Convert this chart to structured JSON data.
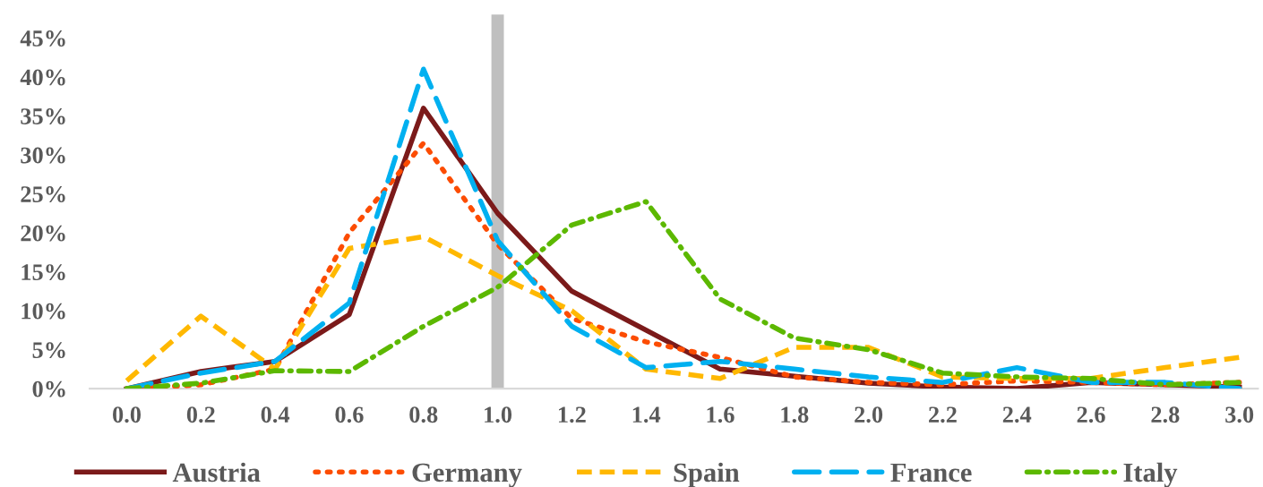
{
  "chart_data": {
    "type": "line",
    "x": [
      0.0,
      0.2,
      0.4,
      0.6,
      0.8,
      1.0,
      1.2,
      1.4,
      1.6,
      1.8,
      2.0,
      2.2,
      2.4,
      2.6,
      2.8,
      3.0
    ],
    "series": [
      {
        "name": "Austria",
        "color": "#7b1a1a",
        "line_style": "solid",
        "values": [
          0,
          2.2,
          3.5,
          9.5,
          36,
          22.5,
          12.5,
          7.5,
          2.5,
          1.6,
          0.7,
          0.2,
          0,
          0.8,
          0.5,
          0.2
        ]
      },
      {
        "name": "Germany",
        "color": "#fc4c02",
        "line_style": "dotted",
        "values": [
          0,
          0.5,
          2.5,
          20,
          31.5,
          18.5,
          9,
          6,
          4,
          1.5,
          0.8,
          0.5,
          1,
          0.8,
          0.5,
          0.8
        ]
      },
      {
        "name": "Spain",
        "color": "#ffb800",
        "line_style": "dashed",
        "values": [
          1,
          9.3,
          2.5,
          18,
          19.5,
          14.5,
          10,
          2.5,
          1.3,
          5.3,
          5.3,
          1.5,
          1.3,
          1.3,
          2.7,
          4
        ]
      },
      {
        "name": "France",
        "color": "#00b0f0",
        "line_style": "long_dashed",
        "values": [
          0,
          2,
          3.5,
          11,
          41,
          19,
          8,
          2.7,
          3.5,
          2.5,
          1.5,
          0.8,
          2.7,
          0.8,
          0.8,
          0
        ]
      },
      {
        "name": "Italy",
        "color": "#5cb800",
        "line_style": "dashdot",
        "values": [
          0,
          0.7,
          2.3,
          2.2,
          8,
          13,
          21,
          24,
          11.5,
          6.5,
          5,
          2,
          1.5,
          1.3,
          0.5,
          0.8
        ]
      }
    ],
    "xlim": [
      -0.1,
      3.05
    ],
    "xticks": [
      {
        "value": 0.0,
        "label": "0.0"
      },
      {
        "value": 0.2,
        "label": "0.2"
      },
      {
        "value": 0.4,
        "label": "0.4"
      },
      {
        "value": 0.6,
        "label": "0.6"
      },
      {
        "value": 0.8,
        "label": "0.8"
      },
      {
        "value": 1.0,
        "label": "1.0"
      },
      {
        "value": 1.2,
        "label": "1.2"
      },
      {
        "value": 1.4,
        "label": "1.4"
      },
      {
        "value": 1.6,
        "label": "1.6"
      },
      {
        "value": 1.8,
        "label": "1.8"
      },
      {
        "value": 2.0,
        "label": "2.0"
      },
      {
        "value": 2.2,
        "label": "2.2"
      },
      {
        "value": 2.4,
        "label": "2.4"
      },
      {
        "value": 2.6,
        "label": "2.6"
      },
      {
        "value": 2.8,
        "label": "2.8"
      },
      {
        "value": 3.0,
        "label": "3.0"
      }
    ],
    "ylim": [
      0,
      48
    ],
    "yticks": [
      {
        "value": 0,
        "label": "0%"
      },
      {
        "value": 5,
        "label": "5%"
      },
      {
        "value": 10,
        "label": "10%"
      },
      {
        "value": 15,
        "label": "15%"
      },
      {
        "value": 20,
        "label": "20%"
      },
      {
        "value": 25,
        "label": "25%"
      },
      {
        "value": 30,
        "label": "30%"
      },
      {
        "value": 35,
        "label": "35%"
      },
      {
        "value": 40,
        "label": "40%"
      },
      {
        "value": 45,
        "label": "45%"
      }
    ],
    "ref_lines": [
      {
        "axis": "x",
        "value": 1.0,
        "color": "#bfbfbf"
      }
    ],
    "grid": false,
    "legend": "bottom"
  }
}
